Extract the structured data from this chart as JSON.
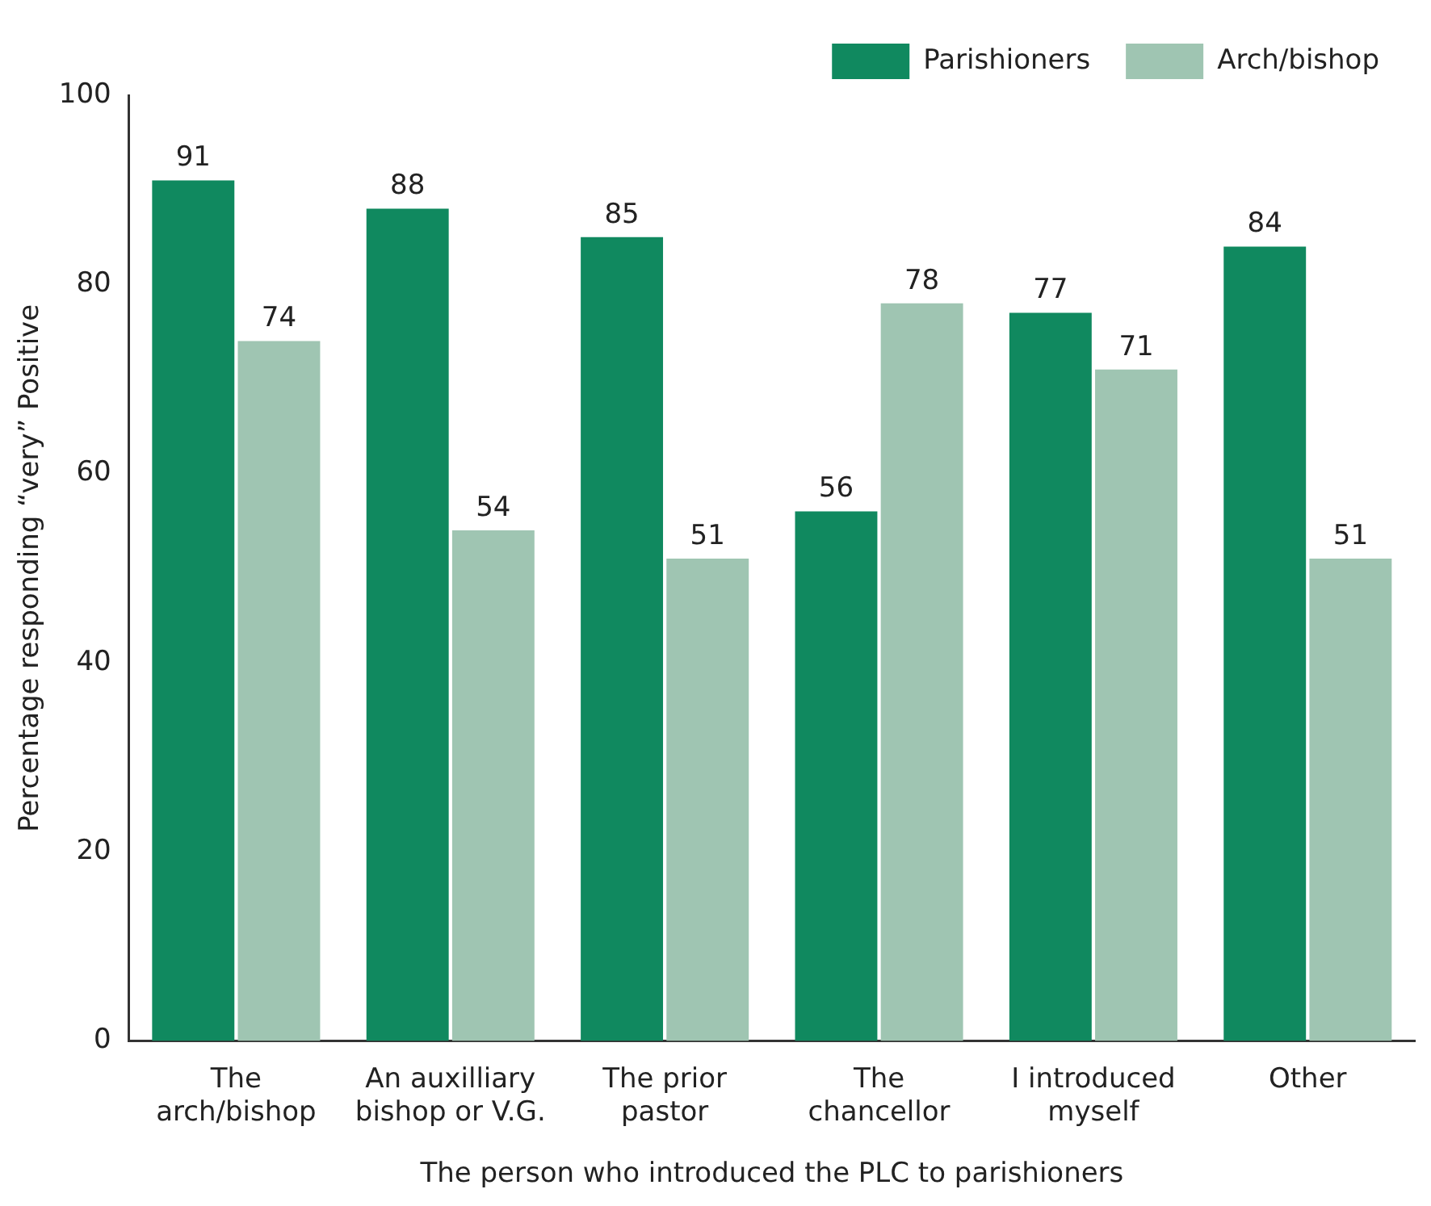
{
  "chart_data": {
    "type": "bar",
    "xlabel": "The person who introduced the PLC to parishioners",
    "ylabel": "Percentage responding “very” Positive",
    "categories": [
      "The arch/bishop",
      "An auxilliary bishop or V.G.",
      "The prior pastor",
      "The chancellor",
      "I introduced myself",
      "Other"
    ],
    "series": [
      {
        "name": "Parishioners",
        "color": "#10895f",
        "values": [
          91,
          88,
          85,
          56,
          77,
          84
        ]
      },
      {
        "name": "Arch/bishop",
        "color": "#9fc5b2",
        "values": [
          74,
          54,
          51,
          78,
          71,
          51
        ]
      }
    ],
    "ylim": [
      0,
      100
    ],
    "yticks": [
      0,
      20,
      40,
      60,
      80,
      100
    ],
    "grid": false,
    "legend": "top right",
    "data_labels": true
  }
}
